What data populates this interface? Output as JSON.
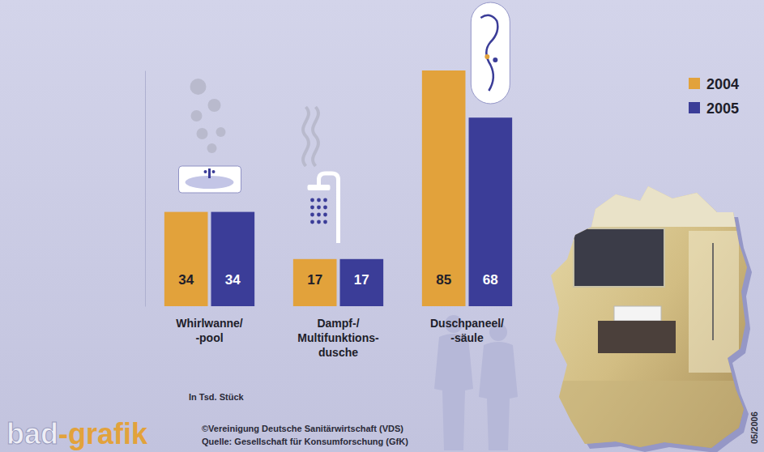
{
  "chart_data": {
    "type": "bar",
    "categories": [
      "Whirlwanne/\n-pool",
      "Dampf-/\nMultifunktions-\ndusche",
      "Duschpaneel/\n-säule"
    ],
    "series": [
      {
        "name": "2004",
        "color": "#e2a23b",
        "values": [
          34,
          17,
          85
        ]
      },
      {
        "name": "2005",
        "color": "#3b3d98",
        "values": [
          34,
          17,
          68
        ]
      }
    ],
    "ylim": [
      0,
      85
    ],
    "tick_labels": "x",
    "grid": false,
    "data_labels": true,
    "legend": "top-right",
    "annotations": [
      "In Tsd. Stück",
      "©Vereinigung Deutsche Sanitärwirtschaft (VDS)",
      "Quelle: Gesellschaft für Konsumforschung (GfK)",
      "bad-grafik",
      "05/2006"
    ]
  }
}
